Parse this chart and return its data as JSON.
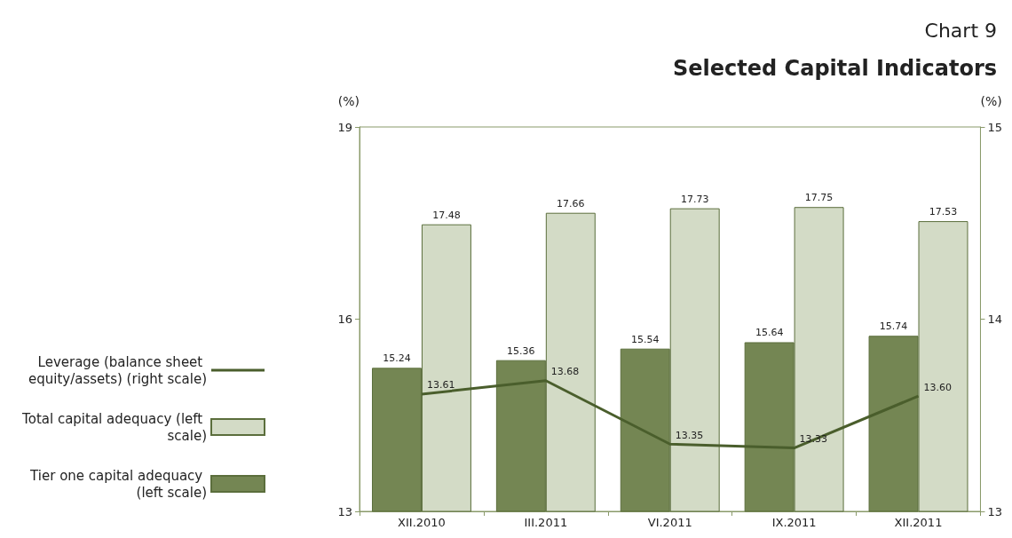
{
  "chart_data": {
    "type": "bar",
    "title": "Chart 9",
    "subtitle": "Selected Capital Indicators",
    "ylabel": "(%)",
    "y2label": "(%)",
    "categories": [
      "XII.2010",
      "III.2011",
      "VI.2011",
      "IX.2011",
      "XII.2011"
    ],
    "series": [
      {
        "name": "Tier one capital adequacy (left scale)",
        "color": "#748653",
        "values": [
          15.24,
          15.36,
          15.54,
          15.64,
          15.74
        ],
        "value_labels": [
          "15.24",
          "15.36",
          "15.54",
          "15.64",
          "15.74"
        ]
      },
      {
        "name": "Total capital adequacy (left scale)",
        "color": "#d3dbc6",
        "values": [
          17.48,
          17.66,
          17.73,
          17.75,
          17.53
        ],
        "value_labels": [
          "17.48",
          "17.66",
          "17.73",
          "17.75",
          "17.53"
        ]
      },
      {
        "name": "Leverage (balance sheet equity/assets) (right scale)",
        "type": "line",
        "axis": "y2",
        "color": "#4a5e2c",
        "values": [
          13.61,
          13.68,
          13.35,
          13.33,
          13.6
        ],
        "value_labels": [
          "13.61",
          "13.68",
          "13.35",
          "13.33",
          "13.60"
        ]
      }
    ],
    "ylim": [
      13,
      19
    ],
    "yticks": [
      13,
      16,
      19
    ],
    "y2lim": [
      13,
      15
    ],
    "y2ticks": [
      13,
      14,
      15
    ],
    "grid": false,
    "legend": "left",
    "marker": "none",
    "line_style": "solid"
  }
}
